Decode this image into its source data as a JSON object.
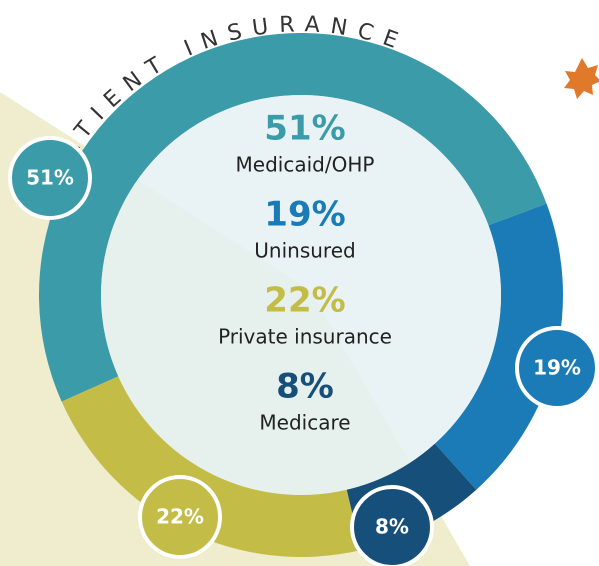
{
  "chart_data": {
    "type": "donut",
    "title": "PATIENT INSURANCE",
    "categories": [
      "Medicaid/OHP",
      "Uninsured",
      "Medicare",
      "Private insurance"
    ],
    "values": [
      51,
      19,
      8,
      22
    ],
    "value_labels": [
      "51%",
      "19%",
      "8%",
      "22%"
    ],
    "colors": [
      "#3b9ba8",
      "#1b7bb6",
      "#174f7b",
      "#c3bd48"
    ]
  }
}
